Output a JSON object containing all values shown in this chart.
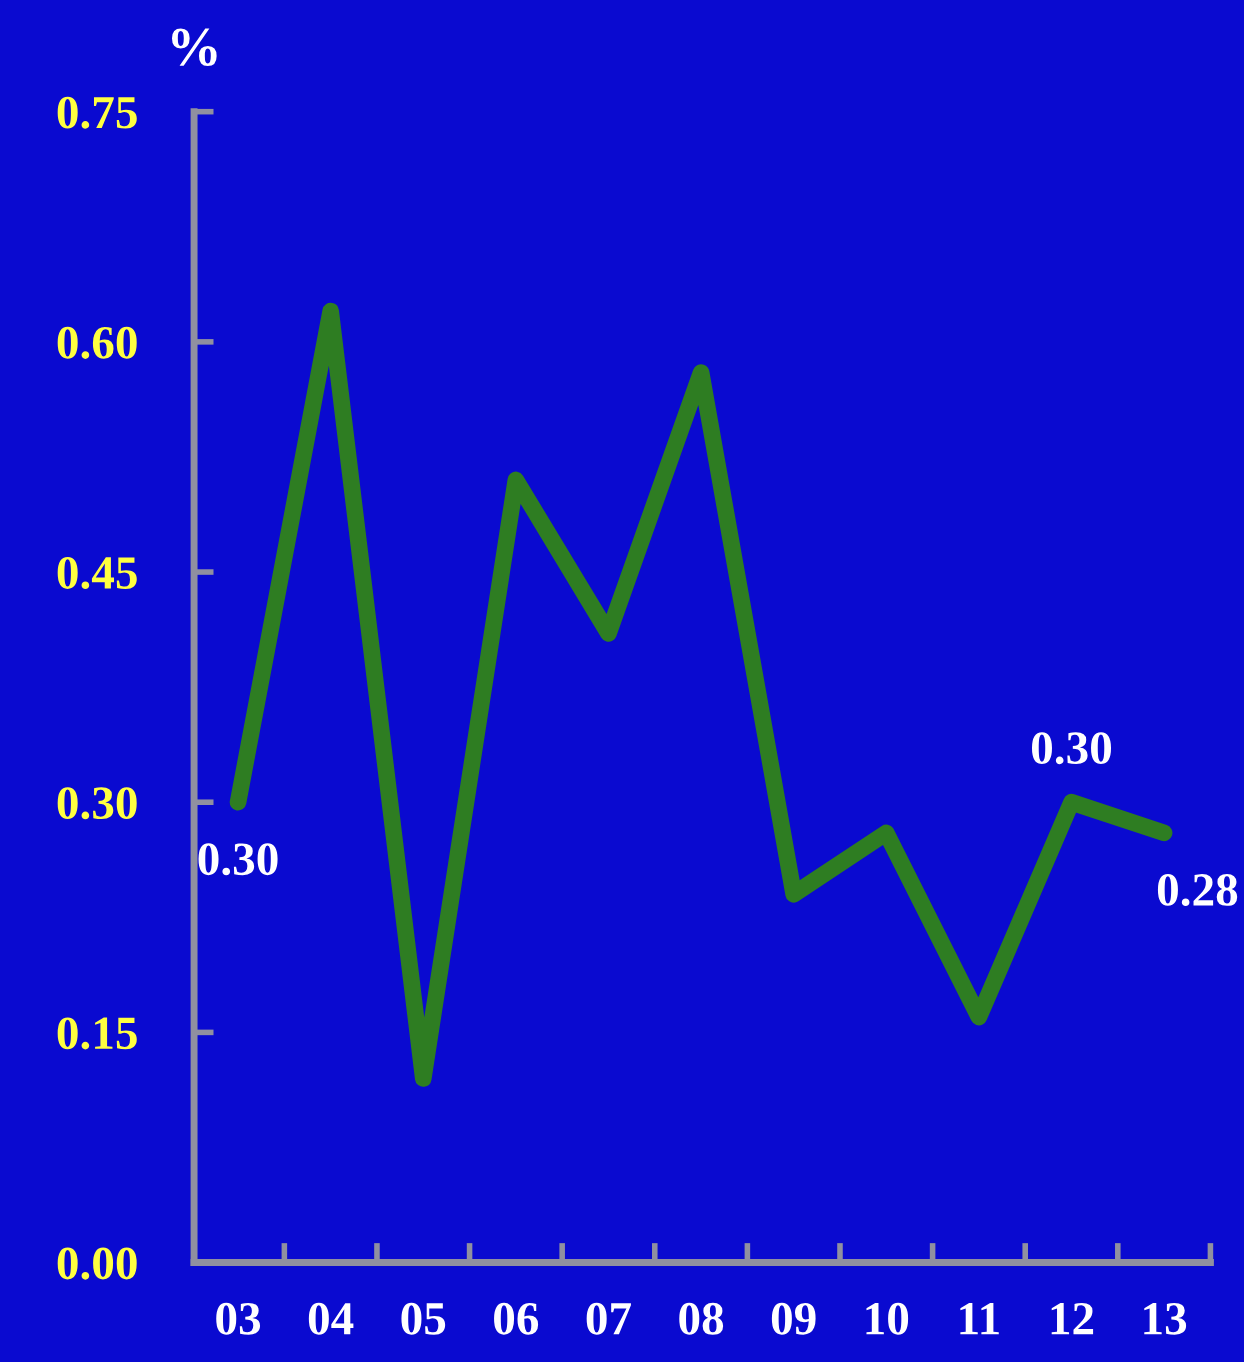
{
  "chart_data": {
    "type": "line",
    "ylabel": "%",
    "categories": [
      "03",
      "04",
      "05",
      "06",
      "07",
      "08",
      "09",
      "10",
      "11",
      "12",
      "13"
    ],
    "series": [
      {
        "color": "#2e7d22",
        "values": [
          0.3,
          0.62,
          0.12,
          0.51,
          0.41,
          0.58,
          0.24,
          0.28,
          0.16,
          0.3,
          0.28
        ],
        "value_labels": [
          "0.30",
          null,
          null,
          null,
          null,
          null,
          null,
          null,
          null,
          "0.30",
          "0.28"
        ]
      }
    ],
    "ylim": [
      0,
      0.75
    ],
    "yticks": [
      {
        "value": 0,
        "label": "0.00"
      },
      {
        "value": 0.15,
        "label": "0.15"
      },
      {
        "value": 0.3,
        "label": "0.30"
      },
      {
        "value": 0.45,
        "label": "0.45"
      },
      {
        "value": 0.6,
        "label": "0.60"
      },
      {
        "value": 0.75,
        "label": "0.75"
      }
    ],
    "grid": false,
    "legend": false,
    "marker": "none",
    "line_style": "solid"
  }
}
